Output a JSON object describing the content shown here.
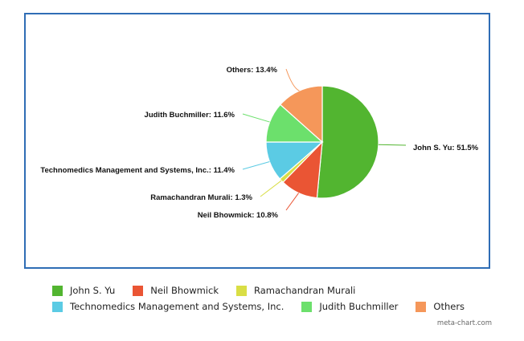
{
  "chart_data": {
    "type": "pie",
    "slices": [
      {
        "name": "John S. Yu",
        "value": 51.5,
        "label": "John S. Yu: 51.5%",
        "color": "#52b530"
      },
      {
        "name": "Neil Bhowmick",
        "value": 10.8,
        "label": "Neil Bhowmick: 10.8%",
        "color": "#ea5534"
      },
      {
        "name": "Ramachandran Murali",
        "value": 1.3,
        "label": "Ramachandran Murali: 1.3%",
        "color": "#d9de45"
      },
      {
        "name": "Technomedics Management and Systems, Inc.",
        "value": 11.4,
        "label": "Technomedics Management and Systems, Inc.: 11.4%",
        "color": "#5bcbe4"
      },
      {
        "name": "Judith Buchmiller",
        "value": 11.6,
        "label": "Judith Buchmiller: 11.6%",
        "color": "#6ce06c"
      },
      {
        "name": "Others",
        "value": 13.4,
        "label": "Others: 13.4%",
        "color": "#f5975a"
      }
    ],
    "legend_placement": "bottom"
  },
  "legend": {
    "rows": [
      [
        {
          "name": "John S. Yu",
          "color": "#52b530"
        },
        {
          "name": "Neil Bhowmick",
          "color": "#ea5534"
        },
        {
          "name": "Ramachandran Murali",
          "color": "#d9de45"
        }
      ],
      [
        {
          "name": "Technomedics Management and Systems, Inc.",
          "color": "#5bcbe4"
        },
        {
          "name": "Judith Buchmiller",
          "color": "#6ce06c"
        },
        {
          "name": "Others",
          "color": "#f5975a"
        }
      ]
    ]
  },
  "credit": "meta-chart.com",
  "colors": {
    "frame_border": "#2f6db5"
  }
}
